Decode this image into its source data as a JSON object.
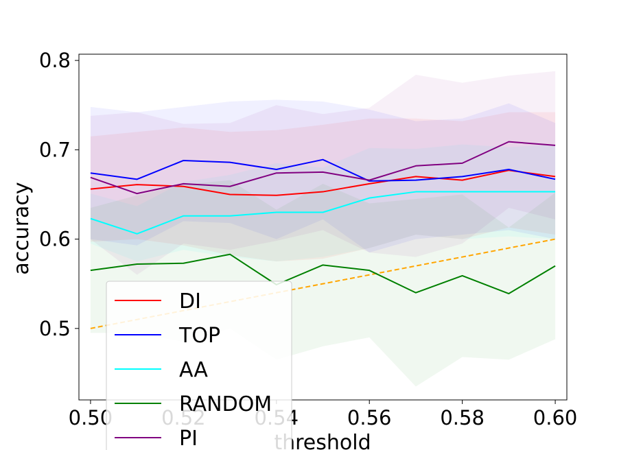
{
  "chart_data": {
    "type": "line",
    "title": "",
    "xlabel": "threshold",
    "ylabel": "accuracy",
    "xlim": [
      0.4975,
      0.6025
    ],
    "ylim": [
      0.42,
      0.807
    ],
    "x_ticks": [
      "0.50",
      "0.52",
      "0.54",
      "0.56",
      "0.58",
      "0.60"
    ],
    "x_tick_values": [
      0.5,
      0.52,
      0.54,
      0.56,
      0.58,
      0.6
    ],
    "y_ticks": [
      "0.5",
      "0.6",
      "0.7",
      "0.8"
    ],
    "y_tick_values": [
      0.5,
      0.6,
      0.7,
      0.8
    ],
    "grid": false,
    "legend_position": "lower-left",
    "x": [
      0.5,
      0.51,
      0.52,
      0.53,
      0.54,
      0.55,
      0.56,
      0.57,
      0.58,
      0.59,
      0.6
    ],
    "series": [
      {
        "name": "DI",
        "color": "#ff0000",
        "values": [
          0.656,
          0.661,
          0.659,
          0.65,
          0.649,
          0.653,
          0.662,
          0.67,
          0.666,
          0.677,
          0.67
        ],
        "lower": [
          0.597,
          0.6,
          0.593,
          0.582,
          0.575,
          0.578,
          0.59,
          0.605,
          0.6,
          0.613,
          0.605
        ],
        "upper": [
          0.715,
          0.72,
          0.725,
          0.72,
          0.722,
          0.728,
          0.735,
          0.735,
          0.732,
          0.742,
          0.742
        ]
      },
      {
        "name": "TOP",
        "color": "#0000ff",
        "values": [
          0.674,
          0.667,
          0.688,
          0.686,
          0.678,
          0.689,
          0.665,
          0.666,
          0.67,
          0.678,
          0.667
        ],
        "lower": [
          0.6,
          0.593,
          0.62,
          0.618,
          0.6,
          0.622,
          0.585,
          0.6,
          0.605,
          0.61,
          0.6
        ],
        "upper": [
          0.748,
          0.742,
          0.748,
          0.754,
          0.756,
          0.754,
          0.745,
          0.732,
          0.735,
          0.752,
          0.73
        ]
      },
      {
        "name": "AA",
        "color": "#00ffff",
        "values": [
          0.623,
          0.606,
          0.626,
          0.626,
          0.63,
          0.63,
          0.646,
          0.653,
          0.653,
          0.653,
          0.653
        ],
        "lower": [
          0.595,
          0.575,
          0.588,
          0.58,
          0.575,
          0.58,
          0.59,
          0.605,
          0.6,
          0.603,
          0.6
        ],
        "upper": [
          0.651,
          0.637,
          0.664,
          0.672,
          0.685,
          0.68,
          0.702,
          0.701,
          0.706,
          0.703,
          0.706
        ]
      },
      {
        "name": "RANDOM",
        "color": "#008000",
        "values": [
          0.565,
          0.572,
          0.573,
          0.583,
          0.549,
          0.571,
          0.565,
          0.54,
          0.559,
          0.539,
          0.57
        ],
        "lower": [
          0.495,
          0.495,
          0.485,
          0.5,
          0.465,
          0.48,
          0.49,
          0.435,
          0.468,
          0.465,
          0.488
        ],
        "upper": [
          0.635,
          0.649,
          0.661,
          0.666,
          0.633,
          0.662,
          0.64,
          0.645,
          0.65,
          0.613,
          0.652
        ]
      },
      {
        "name": "PI",
        "color": "#800080",
        "values": [
          0.669,
          0.651,
          0.662,
          0.659,
          0.674,
          0.675,
          0.666,
          0.682,
          0.685,
          0.709,
          0.705
        ],
        "lower": [
          0.6,
          0.56,
          0.595,
          0.588,
          0.598,
          0.61,
          0.585,
          0.58,
          0.595,
          0.635,
          0.622
        ],
        "upper": [
          0.738,
          0.742,
          0.729,
          0.73,
          0.75,
          0.74,
          0.747,
          0.784,
          0.775,
          0.783,
          0.788
        ]
      }
    ],
    "reference_line": {
      "color": "#ffa500",
      "style": "dashed",
      "x": [
        0.5,
        0.6
      ],
      "y": [
        0.5,
        0.6
      ]
    }
  }
}
